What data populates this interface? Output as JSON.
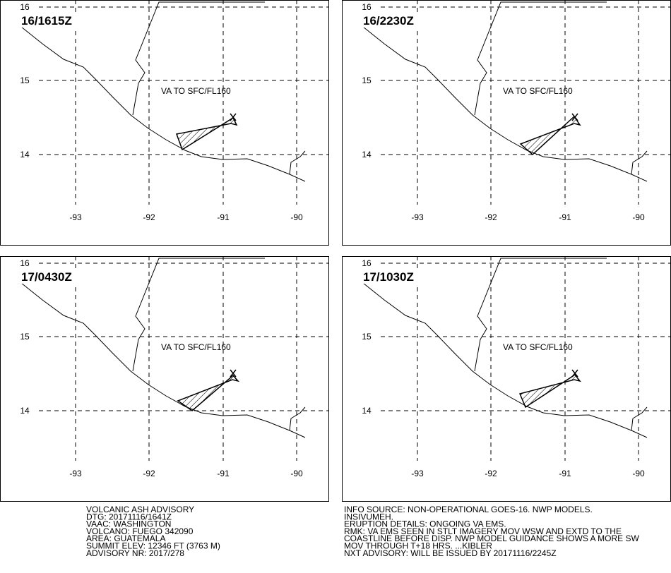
{
  "panels": [
    {
      "time": "16/1615Z",
      "label": "VA TO SFC/FL160"
    },
    {
      "time": "16/2230Z",
      "label": "VA TO SFC/FL160"
    },
    {
      "time": "17/0430Z",
      "label": "VA TO SFC/FL160"
    },
    {
      "time": "17/1030Z",
      "label": "VA TO SFC/FL160"
    }
  ],
  "lat_labels": [
    "16",
    "15",
    "14"
  ],
  "lon_labels": [
    "-93",
    "-92",
    "-91",
    "-90"
  ],
  "advisory_left": [
    "VOLCANIC ASH ADVISORY",
    "DTG: 20171116/1641Z",
    "VAAC: WASHINGTON",
    "VOLCANO: FUEGO 342090",
    "AREA: GUATEMALA",
    "SUMMIT ELEV: 12346 FT (3763 M)",
    "ADVISORY NR: 2017/278"
  ],
  "advisory_right": [
    "INFO SOURCE: NON-OPERATIONAL GOES-16. NWP MODELS.",
    "INSIVUMEH.",
    "ERUPTION DETAILS: ONGOING VA EMS.",
    "RMK: VA EMS SEEN IN STLT IMAGERY MOV WSW AND EXTD TO THE",
    "COASTLINE BEFORE DISP. NWP MODEL GUIDANCE SHOWS A MORE SW",
    "MOV THROUGH T+18 HRS. ...KIBLER",
    "NXT ADVISORY: WILL BE ISSUED BY 20171116/2245Z"
  ]
}
